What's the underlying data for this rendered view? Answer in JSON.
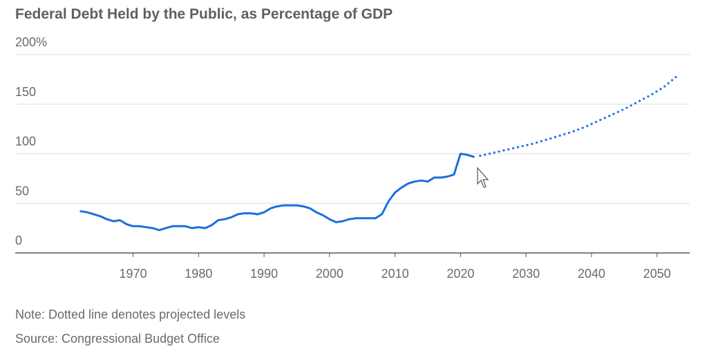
{
  "chart_data": {
    "type": "line",
    "title": "Federal Debt Held by the Public, as Percentage of GDP",
    "notes": [
      "Note: Dotted line denotes projected levels",
      "Source: Congressional Budget Office"
    ],
    "xlim": [
      1952,
      2055
    ],
    "xticks": [
      1970,
      1980,
      1990,
      2000,
      2010,
      2020,
      2030,
      2040,
      2050
    ],
    "ylim": [
      0,
      200
    ],
    "yticks": [
      0,
      50,
      100,
      150,
      {
        "value": 200,
        "label": "200%"
      }
    ],
    "grid": true,
    "series": [
      {
        "color": "#1a6fdf",
        "style": "solid",
        "x": [
          1962,
          1963,
          1964,
          1965,
          1966,
          1967,
          1968,
          1969,
          1970,
          1971,
          1972,
          1973,
          1974,
          1975,
          1976,
          1977,
          1978,
          1979,
          1980,
          1981,
          1982,
          1983,
          1984,
          1985,
          1986,
          1987,
          1988,
          1989,
          1990,
          1991,
          1992,
          1993,
          1994,
          1995,
          1996,
          1997,
          1998,
          1999,
          2000,
          2001,
          2002,
          2003,
          2004,
          2005,
          2006,
          2007,
          2008,
          2009,
          2010,
          2011,
          2012,
          2013,
          2014,
          2015,
          2016,
          2017,
          2018,
          2019,
          2020,
          2021,
          2022
        ],
        "values": [
          42,
          41,
          39,
          37,
          34,
          32,
          33,
          29,
          27,
          27,
          26,
          25,
          23,
          25,
          27,
          27,
          27,
          25,
          26,
          25,
          28,
          33,
          34,
          36,
          39,
          40,
          40,
          39,
          41,
          45,
          47,
          48,
          48,
          48,
          47,
          45,
          41,
          38,
          34,
          31,
          32,
          34,
          35,
          35,
          35,
          35,
          39,
          52,
          61,
          66,
          70,
          72,
          73,
          72,
          76,
          76,
          77,
          79,
          100,
          99,
          97
        ]
      },
      {
        "color": "#1a6fdf",
        "style": "dotted",
        "x": [
          2023,
          2025,
          2027,
          2029,
          2031,
          2033,
          2035,
          2037,
          2039,
          2041,
          2043,
          2045,
          2047,
          2049,
          2051,
          2053
        ],
        "values": [
          98,
          101,
          104,
          107,
          110,
          114,
          118,
          122,
          127,
          133,
          139,
          145,
          152,
          159,
          167,
          178
        ]
      }
    ]
  }
}
